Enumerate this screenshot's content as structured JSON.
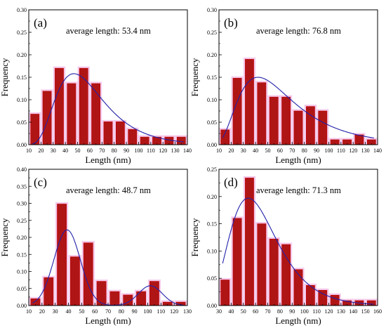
{
  "colors": {
    "bar_fill": "#b01515",
    "bar_edge": "#c00000",
    "bar_glow": "#f4c8ea",
    "fit_line": "#2222aa",
    "axis": "#000000"
  },
  "chart_data": [
    {
      "type": "bar",
      "panel_label": "(a)",
      "annotation": "average length: 53.4 nm",
      "xlabel": "Length (nm)",
      "ylabel": "Frequency",
      "xlim": [
        10,
        140
      ],
      "ylim": [
        0,
        0.3
      ],
      "xticks": [
        10,
        20,
        30,
        40,
        50,
        60,
        70,
        80,
        90,
        100,
        110,
        120,
        130,
        140
      ],
      "yticks": [
        0.0,
        0.05,
        0.1,
        0.15,
        0.2,
        0.25,
        0.3
      ],
      "bin_width": 7,
      "x": [
        15,
        25,
        35,
        45,
        55,
        65,
        75,
        85,
        95,
        105,
        115,
        125,
        135
      ],
      "values": [
        0.068,
        0.119,
        0.17,
        0.136,
        0.17,
        0.136,
        0.051,
        0.051,
        0.034,
        0.017,
        0.017,
        0.017,
        0.017
      ],
      "fit": {
        "type": "lognormal",
        "peak_x": 47,
        "amplitude": 0.158,
        "sigma": 0.42
      }
    },
    {
      "type": "bar",
      "panel_label": "(b)",
      "annotation": "average length: 76.8 nm",
      "xlabel": "Length (nm)",
      "ylabel": "Frequency",
      "xlim": [
        10,
        140
      ],
      "ylim": [
        0,
        0.3
      ],
      "xticks": [
        10,
        20,
        30,
        40,
        50,
        60,
        70,
        80,
        90,
        100,
        110,
        120,
        130,
        140
      ],
      "yticks": [
        0.0,
        0.05,
        0.1,
        0.15,
        0.2,
        0.25,
        0.3
      ],
      "bin_width": 7,
      "x": [
        15,
        25,
        35,
        45,
        55,
        65,
        75,
        85,
        95,
        105,
        115,
        125,
        135
      ],
      "values": [
        0.033,
        0.148,
        0.19,
        0.138,
        0.106,
        0.106,
        0.075,
        0.085,
        0.075,
        0.011,
        0.011,
        0.022,
        0.011
      ],
      "fit": {
        "type": "lognormal",
        "peak_x": 42,
        "amplitude": 0.15,
        "sigma": 0.55
      }
    },
    {
      "type": "bar",
      "panel_label": "(c)",
      "annotation": "average length: 48.7 nm",
      "xlabel": "Length (nm)",
      "ylabel": "Frequency",
      "xlim": [
        10,
        130
      ],
      "ylim": [
        0,
        0.4
      ],
      "xticks": [
        10,
        20,
        30,
        40,
        50,
        60,
        70,
        80,
        90,
        100,
        110,
        120,
        130
      ],
      "yticks": [
        0.0,
        0.05,
        0.1,
        0.15,
        0.2,
        0.25,
        0.3,
        0.35,
        0.4
      ],
      "bin_width": 7,
      "x": [
        15,
        25,
        35,
        45,
        55,
        65,
        75,
        85,
        95,
        105,
        115,
        125
      ],
      "values": [
        0.02,
        0.082,
        0.298,
        0.143,
        0.184,
        0.071,
        0.041,
        0.031,
        0.041,
        0.071,
        0.01,
        0.01
      ],
      "fit": {
        "type": "bimodal",
        "peaks": [
          {
            "x": 39,
            "amplitude": 0.222,
            "sigma": 10
          },
          {
            "x": 102,
            "amplitude": 0.058,
            "sigma": 9
          }
        ]
      }
    },
    {
      "type": "bar",
      "panel_label": "(d)",
      "annotation": "average length: 71.3 nm",
      "xlabel": "Length (nm)",
      "ylabel": "Frequency",
      "xlim": [
        30,
        160
      ],
      "ylim": [
        0,
        0.25
      ],
      "xticks": [
        30,
        40,
        50,
        60,
        70,
        80,
        90,
        100,
        110,
        120,
        130,
        140,
        150,
        160
      ],
      "yticks": [
        0.0,
        0.05,
        0.1,
        0.15,
        0.2,
        0.25
      ],
      "bin_width": 7,
      "x": [
        35,
        45,
        55,
        65,
        75,
        85,
        95,
        105,
        115,
        125,
        135,
        145,
        155
      ],
      "values": [
        0.047,
        0.16,
        0.234,
        0.15,
        0.122,
        0.112,
        0.066,
        0.037,
        0.028,
        0.019,
        0.009,
        0.009,
        0.009
      ],
      "fit": {
        "type": "lognormal",
        "peak_x": 54,
        "amplitude": 0.197,
        "sigma": 0.36
      }
    }
  ]
}
